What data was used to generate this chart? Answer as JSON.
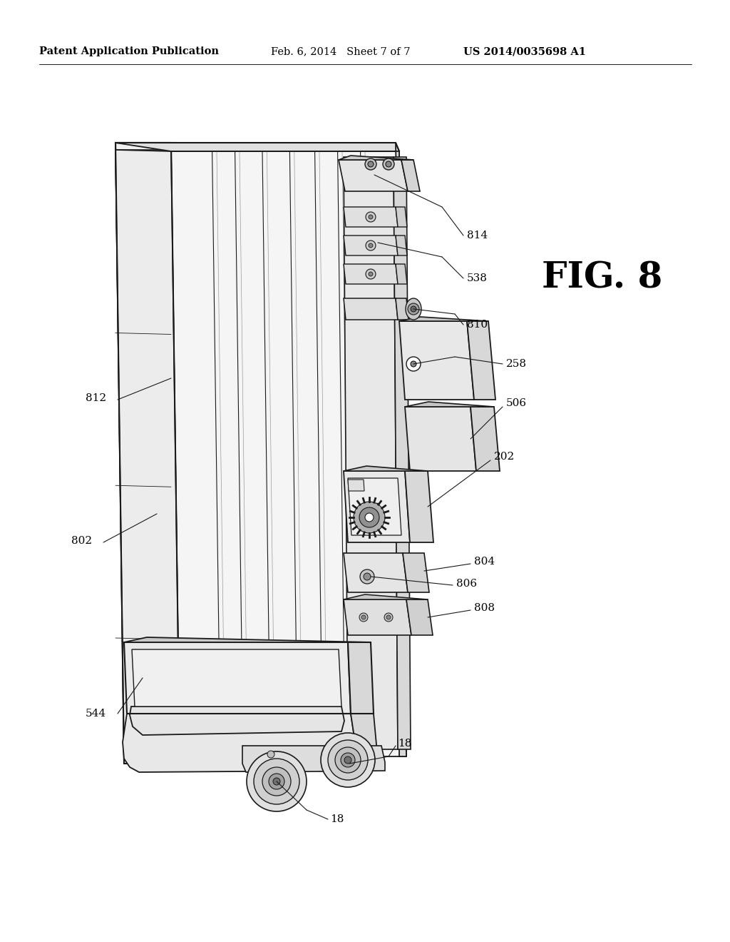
{
  "header_left": "Patent Application Publication",
  "header_center": "Feb. 6, 2014   Sheet 7 of 7",
  "header_right": "US 2014/0035698 A1",
  "fig_label": "FIG. 8",
  "background_color": "#ffffff",
  "drawing_color": "#1a1a1a",
  "fig_label_fontsize": 36,
  "header_fontsize": 10.5,
  "label_fontsize": 11
}
